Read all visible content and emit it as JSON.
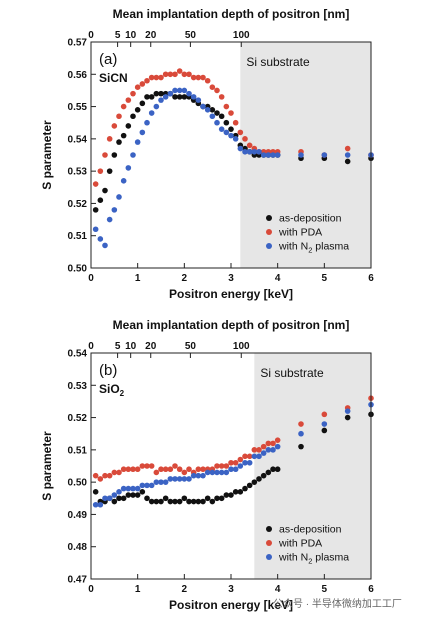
{
  "watermark": "公众号 · 半导体微纳加工工厂",
  "colors": {
    "as_deposition": "#111111",
    "with_pda": "#d94a3a",
    "with_n2_plasma": "#3b63c4",
    "shade": "#e6e6e6"
  },
  "chart_data": [
    {
      "type": "scatter",
      "panel_label": "(a)",
      "material": "SiCN",
      "region_label": "Si substrate",
      "shade_from_energy": 3.2,
      "top_axis_title": "Mean implantation depth of positron [nm]",
      "xlabel": "Positron energy [keV]",
      "ylabel": "S parameter",
      "xlim": [
        0,
        6
      ],
      "ylim": [
        0.5,
        0.57
      ],
      "xticks": [
        "0",
        "1",
        "2",
        "3",
        "4",
        "5",
        "6"
      ],
      "yticks": [
        "0.50",
        "0.51",
        "0.52",
        "0.53",
        "0.54",
        "0.55",
        "0.56",
        "0.57"
      ],
      "top_ticks": [
        {
          "label": "0",
          "energy": 0.0
        },
        {
          "label": "5",
          "energy": 0.57
        },
        {
          "label": "10",
          "energy": 0.85
        },
        {
          "label": "20",
          "energy": 1.28
        },
        {
          "label": "50",
          "energy": 2.13
        },
        {
          "label": "100",
          "energy": 3.22
        }
      ],
      "legend": {
        "position": "bottom-right",
        "entries": [
          "as-deposition",
          "with PDA",
          "with N2 plasma"
        ]
      },
      "series": [
        {
          "name": "as-deposition",
          "color_key": "as_deposition",
          "x": [
            0.1,
            0.2,
            0.3,
            0.4,
            0.5,
            0.6,
            0.7,
            0.8,
            0.9,
            1.0,
            1.1,
            1.2,
            1.3,
            1.4,
            1.5,
            1.6,
            1.7,
            1.8,
            1.9,
            2.0,
            2.1,
            2.2,
            2.3,
            2.4,
            2.5,
            2.6,
            2.7,
            2.8,
            2.9,
            3.0,
            3.1,
            3.2,
            3.3,
            3.4,
            3.5,
            3.6,
            3.7,
            3.8,
            3.9,
            4.0,
            4.5,
            5.0,
            5.5,
            6.0
          ],
          "y": [
            0.518,
            0.521,
            0.524,
            0.53,
            0.535,
            0.539,
            0.541,
            0.544,
            0.547,
            0.549,
            0.551,
            0.553,
            0.553,
            0.554,
            0.554,
            0.554,
            0.554,
            0.553,
            0.553,
            0.553,
            0.553,
            0.552,
            0.551,
            0.55,
            0.55,
            0.549,
            0.548,
            0.547,
            0.545,
            0.543,
            0.541,
            0.538,
            0.537,
            0.536,
            0.535,
            0.535,
            0.535,
            0.535,
            0.535,
            0.535,
            0.534,
            0.534,
            0.533,
            0.534
          ]
        },
        {
          "name": "with PDA",
          "color_key": "with_pda",
          "x": [
            0.1,
            0.2,
            0.3,
            0.4,
            0.5,
            0.6,
            0.7,
            0.8,
            0.9,
            1.0,
            1.1,
            1.2,
            1.3,
            1.4,
            1.5,
            1.6,
            1.7,
            1.8,
            1.9,
            2.0,
            2.1,
            2.2,
            2.3,
            2.4,
            2.5,
            2.6,
            2.7,
            2.8,
            2.9,
            3.0,
            3.1,
            3.2,
            3.3,
            3.4,
            3.5,
            3.6,
            3.7,
            3.8,
            3.9,
            4.0,
            4.5,
            5.0,
            5.5,
            6.0
          ],
          "y": [
            0.526,
            0.53,
            0.535,
            0.54,
            0.544,
            0.547,
            0.55,
            0.552,
            0.554,
            0.556,
            0.557,
            0.558,
            0.559,
            0.559,
            0.559,
            0.56,
            0.56,
            0.56,
            0.561,
            0.56,
            0.56,
            0.559,
            0.559,
            0.559,
            0.558,
            0.556,
            0.555,
            0.553,
            0.55,
            0.548,
            0.545,
            0.542,
            0.54,
            0.538,
            0.537,
            0.536,
            0.536,
            0.536,
            0.536,
            0.536,
            0.536,
            0.535,
            0.537,
            0.535
          ]
        },
        {
          "name": "with N2 plasma",
          "color_key": "with_n2_plasma",
          "x": [
            0.1,
            0.2,
            0.3,
            0.4,
            0.5,
            0.6,
            0.7,
            0.8,
            0.9,
            1.0,
            1.1,
            1.2,
            1.3,
            1.4,
            1.5,
            1.6,
            1.7,
            1.8,
            1.9,
            2.0,
            2.1,
            2.2,
            2.3,
            2.4,
            2.5,
            2.6,
            2.7,
            2.8,
            2.9,
            3.0,
            3.1,
            3.2,
            3.3,
            3.4,
            3.5,
            3.6,
            3.7,
            3.8,
            3.9,
            4.0,
            4.5,
            5.0,
            5.5,
            6.0
          ],
          "y": [
            0.512,
            0.509,
            0.507,
            0.515,
            0.518,
            0.522,
            0.527,
            0.531,
            0.535,
            0.539,
            0.542,
            0.545,
            0.548,
            0.55,
            0.552,
            0.553,
            0.554,
            0.555,
            0.555,
            0.555,
            0.554,
            0.553,
            0.552,
            0.55,
            0.549,
            0.547,
            0.545,
            0.543,
            0.542,
            0.541,
            0.54,
            0.537,
            0.536,
            0.536,
            0.536,
            0.536,
            0.535,
            0.535,
            0.535,
            0.535,
            0.535,
            0.535,
            0.535,
            0.535
          ]
        }
      ]
    },
    {
      "type": "scatter",
      "panel_label": "(b)",
      "material": "SiO2",
      "region_label": "Si substrate",
      "shade_from_energy": 3.5,
      "top_axis_title": "Mean implantation depth of positron [nm]",
      "xlabel": "Positron energy [keV]",
      "ylabel": "S parameter",
      "xlim": [
        0,
        6
      ],
      "ylim": [
        0.47,
        0.54
      ],
      "xticks": [
        "0",
        "1",
        "2",
        "3",
        "4",
        "5",
        "6"
      ],
      "yticks": [
        "0.47",
        "0.48",
        "0.49",
        "0.50",
        "0.51",
        "0.52",
        "0.53",
        "0.54"
      ],
      "top_ticks": [
        {
          "label": "0",
          "energy": 0.0
        },
        {
          "label": "5",
          "energy": 0.57
        },
        {
          "label": "10",
          "energy": 0.85
        },
        {
          "label": "20",
          "energy": 1.28
        },
        {
          "label": "50",
          "energy": 2.13
        },
        {
          "label": "100",
          "energy": 3.22
        }
      ],
      "legend": {
        "position": "bottom-right",
        "entries": [
          "as-deposition",
          "with PDA",
          "with N2 plasma"
        ]
      },
      "series": [
        {
          "name": "as-deposition",
          "color_key": "as_deposition",
          "x": [
            0.1,
            0.2,
            0.3,
            0.4,
            0.5,
            0.6,
            0.7,
            0.8,
            0.9,
            1.0,
            1.1,
            1.2,
            1.3,
            1.4,
            1.5,
            1.6,
            1.7,
            1.8,
            1.9,
            2.0,
            2.1,
            2.2,
            2.3,
            2.4,
            2.5,
            2.6,
            2.7,
            2.8,
            2.9,
            3.0,
            3.1,
            3.2,
            3.3,
            3.4,
            3.5,
            3.6,
            3.7,
            3.8,
            3.9,
            4.0,
            4.5,
            5.0,
            5.5,
            6.0
          ],
          "y": [
            0.497,
            0.494,
            0.494,
            0.495,
            0.494,
            0.495,
            0.495,
            0.496,
            0.496,
            0.496,
            0.497,
            0.495,
            0.494,
            0.494,
            0.494,
            0.495,
            0.494,
            0.494,
            0.494,
            0.495,
            0.494,
            0.494,
            0.494,
            0.494,
            0.495,
            0.494,
            0.495,
            0.495,
            0.496,
            0.496,
            0.497,
            0.497,
            0.498,
            0.499,
            0.5,
            0.501,
            0.502,
            0.503,
            0.504,
            0.504,
            0.511,
            0.516,
            0.52,
            0.521
          ]
        },
        {
          "name": "with PDA",
          "color_key": "with_pda",
          "x": [
            0.1,
            0.2,
            0.3,
            0.4,
            0.5,
            0.6,
            0.7,
            0.8,
            0.9,
            1.0,
            1.1,
            1.2,
            1.3,
            1.4,
            1.5,
            1.6,
            1.7,
            1.8,
            1.9,
            2.0,
            2.1,
            2.2,
            2.3,
            2.4,
            2.5,
            2.6,
            2.7,
            2.8,
            2.9,
            3.0,
            3.1,
            3.2,
            3.3,
            3.4,
            3.5,
            3.6,
            3.7,
            3.8,
            3.9,
            4.0,
            4.5,
            5.0,
            5.5,
            6.0
          ],
          "y": [
            0.502,
            0.501,
            0.502,
            0.502,
            0.503,
            0.503,
            0.504,
            0.504,
            0.504,
            0.504,
            0.505,
            0.505,
            0.505,
            0.503,
            0.504,
            0.504,
            0.504,
            0.505,
            0.504,
            0.503,
            0.504,
            0.503,
            0.504,
            0.504,
            0.504,
            0.504,
            0.505,
            0.505,
            0.505,
            0.506,
            0.506,
            0.507,
            0.508,
            0.508,
            0.51,
            0.51,
            0.511,
            0.512,
            0.512,
            0.513,
            0.518,
            0.521,
            0.523,
            0.526
          ]
        },
        {
          "name": "with N2 plasma",
          "color_key": "with_n2_plasma",
          "x": [
            0.1,
            0.2,
            0.3,
            0.4,
            0.5,
            0.6,
            0.7,
            0.8,
            0.9,
            1.0,
            1.1,
            1.2,
            1.3,
            1.4,
            1.5,
            1.6,
            1.7,
            1.8,
            1.9,
            2.0,
            2.1,
            2.2,
            2.3,
            2.4,
            2.5,
            2.6,
            2.7,
            2.8,
            2.9,
            3.0,
            3.1,
            3.2,
            3.3,
            3.4,
            3.5,
            3.6,
            3.7,
            3.8,
            3.9,
            4.0,
            4.5,
            5.0,
            5.5,
            6.0
          ],
          "y": [
            0.493,
            0.493,
            0.495,
            0.495,
            0.496,
            0.497,
            0.498,
            0.498,
            0.498,
            0.498,
            0.499,
            0.499,
            0.499,
            0.5,
            0.5,
            0.5,
            0.501,
            0.501,
            0.501,
            0.501,
            0.501,
            0.502,
            0.502,
            0.502,
            0.503,
            0.503,
            0.503,
            0.503,
            0.503,
            0.504,
            0.504,
            0.505,
            0.506,
            0.506,
            0.508,
            0.508,
            0.509,
            0.51,
            0.51,
            0.511,
            0.515,
            0.518,
            0.522,
            0.524
          ]
        }
      ]
    }
  ]
}
